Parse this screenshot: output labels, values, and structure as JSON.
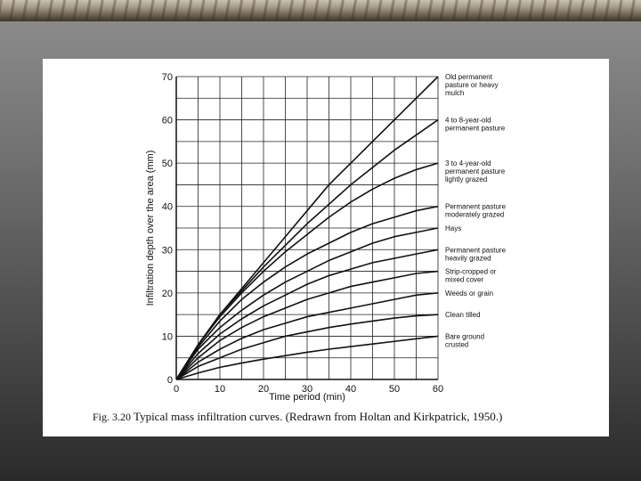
{
  "slide": {
    "corner_text": "0",
    "caption_figure": "Fig. 3.20",
    "caption_text": "Typical mass infiltration curves. (Redrawn from Holtan and Kirkpatrick, 1950.)"
  },
  "chart_data": {
    "type": "line",
    "title": "",
    "xlabel": "Time period (min)",
    "ylabel": "Infiltration depth over the area (mm)",
    "xlim": [
      0,
      60
    ],
    "ylim": [
      0,
      70
    ],
    "xticks": [
      0,
      10,
      20,
      30,
      40,
      50,
      60
    ],
    "yticks": [
      0,
      10,
      20,
      30,
      40,
      50,
      60,
      70
    ],
    "grid": true,
    "x": [
      0,
      5,
      10,
      15,
      20,
      25,
      30,
      35,
      40,
      45,
      50,
      55,
      60
    ],
    "series": [
      {
        "name": "Old permanent pasture or heavy mulch",
        "label_lines": [
          "Old permanent",
          "pasture or heavy",
          "mulch"
        ],
        "values": [
          0,
          8,
          15,
          21,
          27,
          33,
          39,
          45,
          50,
          55,
          60,
          65,
          70
        ]
      },
      {
        "name": "4 to 8-year-old permanent pasture",
        "label_lines": [
          "4 to 8-year-old",
          "permanent pasture"
        ],
        "values": [
          0,
          8,
          15,
          20.5,
          26,
          31,
          36,
          40.5,
          45,
          49,
          53,
          56.5,
          60
        ]
      },
      {
        "name": "3 to 4-year-old permanent pasture lightly grazed",
        "label_lines": [
          "3 to 4-year-old",
          "permanent pasture",
          "lightly grazed"
        ],
        "values": [
          0,
          8,
          14.5,
          20,
          25,
          29.5,
          33.5,
          37.5,
          41,
          44,
          46.5,
          48.5,
          50
        ]
      },
      {
        "name": "Permanent pasture moderately grazed",
        "label_lines": [
          "Permanent pasture",
          "moderately grazed"
        ],
        "values": [
          0,
          7.5,
          13.5,
          18.5,
          22.5,
          26,
          29,
          31.5,
          34,
          36,
          37.5,
          39,
          40
        ]
      },
      {
        "name": "Hays",
        "label_lines": [
          "Hays"
        ],
        "values": [
          0,
          7,
          12,
          16,
          19.5,
          22.5,
          25,
          27.5,
          29.5,
          31.5,
          33,
          34,
          35
        ]
      },
      {
        "name": "Permanent pasture heavily grazed",
        "label_lines": [
          "Permanent pasture",
          "heavily grazed"
        ],
        "values": [
          0,
          6,
          10.5,
          14,
          17,
          19.5,
          22,
          24,
          25.5,
          27,
          28,
          29,
          30
        ]
      },
      {
        "name": "Strip-cropped or mixed cover",
        "label_lines": [
          "Strip-cropped or",
          "mixed cover"
        ],
        "values": [
          0,
          5,
          9,
          12,
          14.5,
          16.5,
          18.5,
          20,
          21.5,
          22.5,
          23.5,
          24.5,
          25
        ]
      },
      {
        "name": "Weeds or grain",
        "label_lines": [
          "Weeds or grain"
        ],
        "values": [
          0,
          4,
          7,
          9.5,
          11.5,
          13,
          14.5,
          15.5,
          16.5,
          17.5,
          18.5,
          19.5,
          20
        ]
      },
      {
        "name": "Clean tilled",
        "label_lines": [
          "Clean tilled"
        ],
        "values": [
          0,
          3,
          5,
          7,
          8.5,
          10,
          11,
          12,
          12.8,
          13.5,
          14.2,
          14.7,
          15
        ]
      },
      {
        "name": "Bare ground crusted",
        "label_lines": [
          "Bare ground",
          "crusted"
        ],
        "values": [
          0,
          1.5,
          2.8,
          3.8,
          4.7,
          5.5,
          6.3,
          7,
          7.6,
          8.2,
          8.8,
          9.4,
          10
        ]
      }
    ]
  }
}
